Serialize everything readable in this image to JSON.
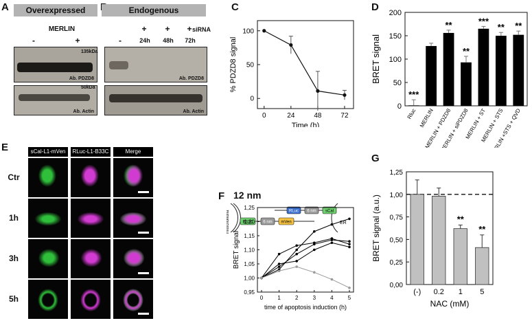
{
  "panels": {
    "A": {
      "letter": "A",
      "header": "Overexpressed",
      "condition": "MERLIN",
      "lanes": [
        "-",
        "+"
      ],
      "blot1_label": "Ab. PDZD8",
      "blot2_label": "Ab. Actin",
      "mw1": "135kDa",
      "mw2": "50kDa"
    },
    "B": {
      "letter": "B",
      "header": "Endogenous",
      "plus": [
        "+",
        "+",
        "+"
      ],
      "sirna": "siRNA",
      "lanes": [
        "-",
        "24h",
        "48h",
        "72h"
      ],
      "blot1_label": "Ab. PDZD8",
      "blot2_label": "Ab. Actin"
    },
    "C": {
      "letter": "C"
    },
    "D": {
      "letter": "D"
    },
    "E": {
      "letter": "E",
      "columns": [
        "sCal-L1-mVen",
        "RLuc-L1-B33C",
        "Merge"
      ],
      "rows": [
        "Ctr",
        "1h",
        "3h",
        "5h"
      ]
    },
    "F": {
      "letter": "F",
      "distance": "12 nm",
      "mito_label": "mitochondria",
      "er_label": "ER",
      "boxes": [
        "B33C",
        "6 nm",
        "mVen",
        "RLuc",
        "6 nm",
        "sCal"
      ]
    },
    "G": {
      "letter": "G"
    }
  },
  "chart_data": [
    {
      "id": "C",
      "type": "line",
      "x": [
        0,
        24,
        48,
        72
      ],
      "y": [
        100,
        79,
        11,
        5
      ],
      "error": [
        0,
        13,
        29,
        7
      ],
      "xticks": [
        "0",
        "24",
        "48",
        "72"
      ],
      "yticks": [
        "0",
        "50",
        "100"
      ],
      "xlabel": "Time (h)",
      "ylabel": "% PDZD8 signal",
      "ylim": [
        -15,
        115
      ],
      "grid": false
    },
    {
      "id": "D",
      "type": "bar",
      "categories": [
        "Rluc",
        "MERLIN",
        "MERLIN + PDZD8",
        "MERLIN + siPDZD8",
        "MERLIN + ST",
        "MERLIN + STS",
        "MERLIN +STS + QVD"
      ],
      "values": [
        1,
        128,
        156,
        93,
        165,
        150,
        152
      ],
      "error": [
        12,
        6,
        6,
        13,
        5,
        7,
        8
      ],
      "annotations": [
        "***",
        "",
        "**",
        "**",
        "***",
        "**",
        "**"
      ],
      "yticks": [
        "0",
        "50",
        "100",
        "150",
        "200"
      ],
      "ylabel": "BRET signal",
      "ylim": [
        0,
        200
      ],
      "grid": false
    },
    {
      "id": "F",
      "type": "line",
      "x": [
        0,
        1,
        2,
        3,
        4,
        5
      ],
      "series": [
        {
          "values": [
            1.0,
            1.03,
            1.1,
            1.165,
            1.19,
            1.21
          ],
          "color": "#000000"
        },
        {
          "values": [
            1.0,
            1.085,
            1.115,
            1.125,
            1.14,
            1.12
          ],
          "color": "#000000"
        },
        {
          "values": [
            1.0,
            1.04,
            1.085,
            1.12,
            1.135,
            1.13
          ],
          "color": "#000000"
        },
        {
          "values": [
            1.0,
            1.05,
            1.06,
            1.1,
            1.125,
            1.11
          ],
          "color": "#000000"
        },
        {
          "values": [
            1.0,
            1.025,
            1.04,
            1.02,
            0.995,
            0.965
          ],
          "color": "#999999"
        }
      ],
      "xticks": [
        "0",
        "1",
        "2",
        "3",
        "4",
        "5"
      ],
      "yticks": [
        "0,95",
        "1,00",
        "1,05",
        "1,10",
        "1,15",
        "1,20",
        "1,25"
      ],
      "xlabel": "time of apoptosis induction (h)",
      "ylabel": "BRET signal",
      "ylim": [
        0.95,
        1.25
      ]
    },
    {
      "id": "G",
      "type": "bar",
      "categories": [
        "(-)",
        "0.2",
        "1",
        "5"
      ],
      "values": [
        1.0,
        0.98,
        0.62,
        0.41
      ],
      "error": [
        0.16,
        0.09,
        0.04,
        0.14
      ],
      "annotations": [
        "",
        "",
        "**",
        "**"
      ],
      "reference_line": 1.0,
      "yticks": [
        "0,00",
        "0,25",
        "0,50",
        "0,75",
        "1,00",
        "1,25"
      ],
      "xlabel": "NAC (mM)",
      "ylabel": "BRET signal (a.u.)",
      "ylim": [
        0,
        1.25
      ]
    }
  ],
  "colors": {
    "bar_d": "#000000",
    "bar_g": "#c0c0c0",
    "header": "#b3b3b3",
    "ven": "#2fbf3a",
    "rluc": "#d23bd2"
  }
}
